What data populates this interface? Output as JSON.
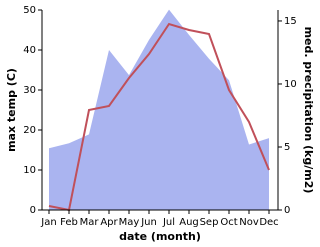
{
  "chart_data": {
    "type": "area_line",
    "x_label": "date (month)",
    "y_label": "max temp (C)",
    "y2_label": "med. precipitation (kg/m2)",
    "categories": [
      "Jan",
      "Feb",
      "Mar",
      "Apr",
      "May",
      "Jun",
      "Jul",
      "Aug",
      "Sep",
      "Oct",
      "Nov",
      "Dec"
    ],
    "series": [
      {
        "name": "med. precipitation",
        "color": "#aab4f0",
        "axis": "y2",
        "values": [
          4.9,
          5.3,
          6.0,
          12.7,
          10.7,
          13.5,
          15.9,
          13.9,
          12.0,
          10.3,
          5.2,
          5.7
        ]
      },
      {
        "name": "max temp",
        "color": "#c0505a",
        "values": [
          1,
          0,
          25,
          26,
          33,
          39,
          46.5,
          45,
          44,
          30,
          22,
          10
        ]
      }
    ],
    "ylim": [
      0,
      50
    ],
    "yticks": [
      0,
      10,
      20,
      30,
      40,
      50
    ],
    "y2lim": [
      0,
      15.87
    ],
    "y2ticks": [
      0,
      5,
      10,
      15
    ]
  }
}
